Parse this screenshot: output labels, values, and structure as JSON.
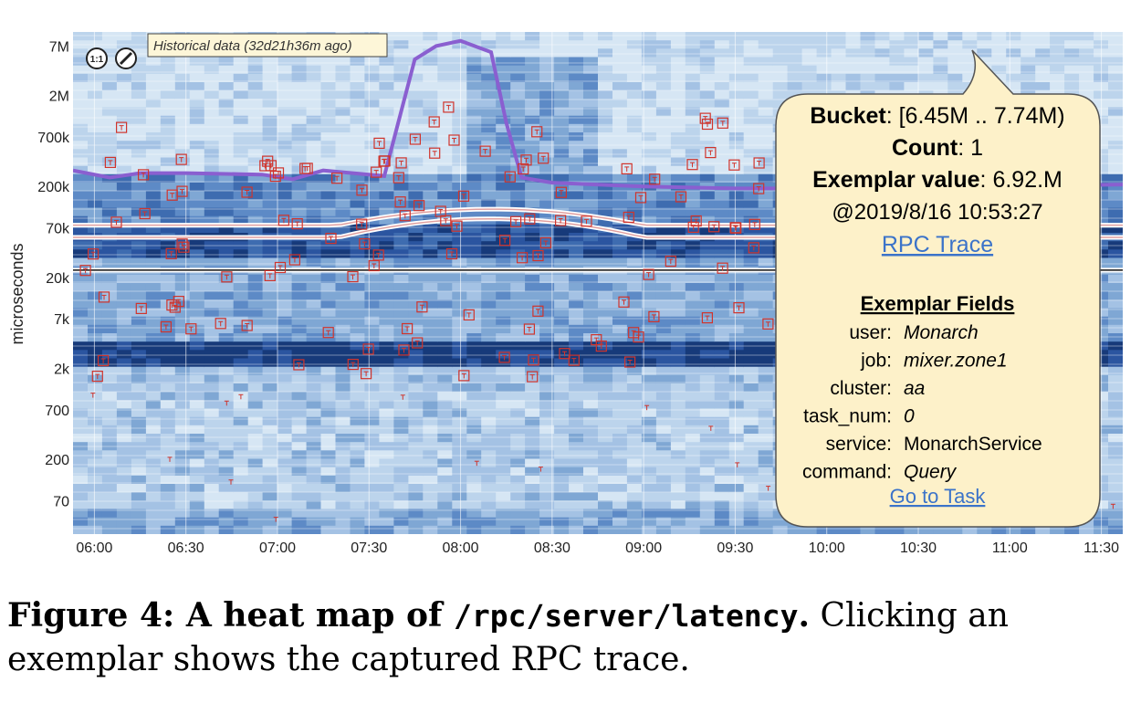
{
  "chart_data": {
    "type": "heatmap",
    "ylabel": "microseconds",
    "y_scale": "log",
    "y_ticks": [
      "7M",
      "2M",
      "700k",
      "200k",
      "70k",
      "20k",
      "7k",
      "2k",
      "700",
      "200",
      "70"
    ],
    "y_tick_values": [
      7000000,
      2000000,
      700000,
      200000,
      70000,
      20000,
      7000,
      2000,
      700,
      200,
      70
    ],
    "ylim": [
      30,
      10000000
    ],
    "x_ticks": [
      "06:00",
      "06:30",
      "07:00",
      "07:30",
      "08:00",
      "08:30",
      "09:00",
      "09:30",
      "10:00",
      "10:30",
      "11:00",
      "11:30"
    ],
    "xlim": [
      "05:53",
      "11:37"
    ],
    "grid": true,
    "historical_badge": "Historical data (32d21h36m ago)",
    "controls": {
      "zoom_label": "1:1"
    },
    "colors": {
      "light": "#d6e6f4",
      "mid": "#7fa7d4",
      "dark": "#3e6cb0",
      "darkest": "#173a7a",
      "percentile_line": "#8a5fd0",
      "exemplar": "#d0342c",
      "tooltip_bg": "#fdf1c9"
    },
    "percentile_series": [
      {
        "x": "05:53",
        "y": 300000
      },
      {
        "x": "06:05",
        "y": 250000
      },
      {
        "x": "06:15",
        "y": 280000
      },
      {
        "x": "06:30",
        "y": 280000
      },
      {
        "x": "06:55",
        "y": 270000
      },
      {
        "x": "07:05",
        "y": 240000
      },
      {
        "x": "07:15",
        "y": 300000
      },
      {
        "x": "07:35",
        "y": 260000
      },
      {
        "x": "07:45",
        "y": 5000000
      },
      {
        "x": "07:52",
        "y": 7000000
      },
      {
        "x": "08:00",
        "y": 8000000
      },
      {
        "x": "08:10",
        "y": 6000000
      },
      {
        "x": "08:15",
        "y": 1000000
      },
      {
        "x": "08:20",
        "y": 250000
      },
      {
        "x": "08:30",
        "y": 220000
      },
      {
        "x": "09:00",
        "y": 200000
      },
      {
        "x": "09:30",
        "y": 190000
      },
      {
        "x": "10:00",
        "y": 190000
      },
      {
        "x": "11:37",
        "y": 210000
      }
    ],
    "tooltip": {
      "bucket_label": "Bucket",
      "bucket_value": ": [6.45M .. 7.74M)",
      "count_label": "Count",
      "count_value": ": 1",
      "value_label": "Exemplar value",
      "value_value": ": 6.92.M",
      "timestamp": "@2019/8/16 10:53:27",
      "trace_link": "RPC Trace",
      "fields_title": "Exemplar Fields",
      "fields": [
        {
          "key": "user:",
          "value": "Monarch"
        },
        {
          "key": "job:",
          "value": "mixer.zone1"
        },
        {
          "key": "cluster:",
          "value": "aa"
        },
        {
          "key": "task_num:",
          "value": "0"
        },
        {
          "key": "service:",
          "value": "MonarchService"
        },
        {
          "key": "command:",
          "value": "Query"
        }
      ],
      "task_link": "Go to Task"
    }
  },
  "caption": {
    "label": "Figure 4:  A heat map of ",
    "code": "/rpc/server/latency",
    "period": ".",
    "text": " Clicking an exemplar shows the captured RPC trace."
  }
}
